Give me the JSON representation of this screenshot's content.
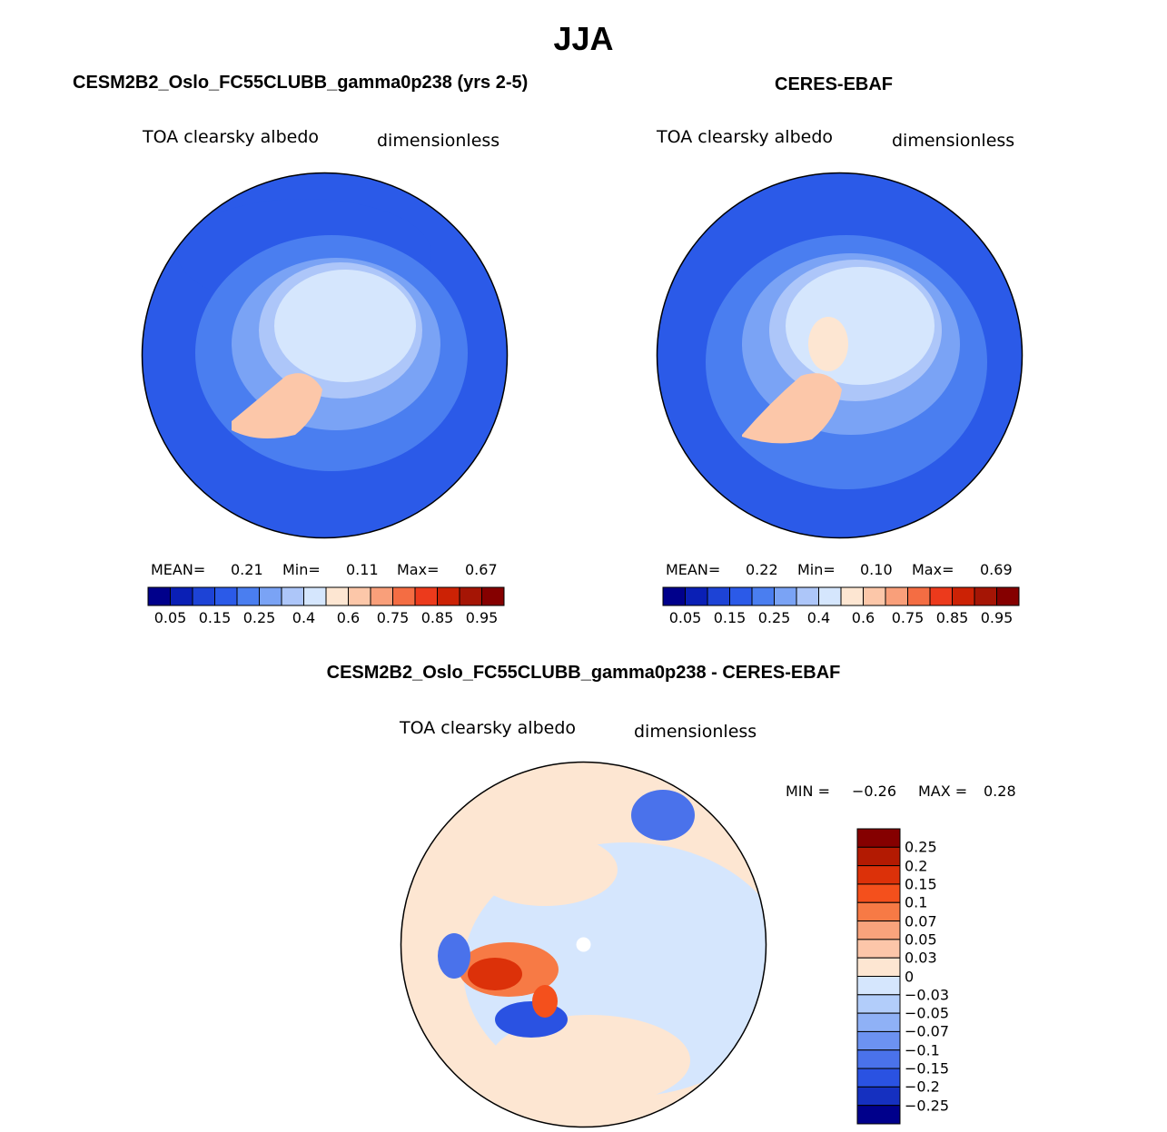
{
  "title": "JJA",
  "chart_data": [
    {
      "type": "heatmap",
      "projection": "north-polar-stereographic",
      "case_title": "CESM2B2_Oslo_FC55CLUBB_gamma0p238 (yrs 2-5)",
      "variable": "TOA clearsky albedo",
      "units": "dimensionless",
      "stats": {
        "mean_label": "MEAN=",
        "mean": "0.21",
        "min_label": "Min=",
        "min": "0.11",
        "max_label": "Max=",
        "max": "0.67"
      },
      "colorbar": {
        "colors": [
          "#00008b",
          "#0a1fb5",
          "#1d43d6",
          "#2b5ae8",
          "#4a7ef0",
          "#7aa3f5",
          "#adc6f9",
          "#d5e6fd",
          "#fde6d2",
          "#fcc7a9",
          "#f99f7a",
          "#f46d43",
          "#ec3a1c",
          "#cc2205",
          "#a51505",
          "#850000"
        ],
        "tick_labels": [
          "0.05",
          "0.15",
          "0.25",
          "0.4",
          "0.6",
          "0.75",
          "0.85",
          "0.95"
        ]
      }
    },
    {
      "type": "heatmap",
      "projection": "north-polar-stereographic",
      "case_title": "CERES-EBAF",
      "variable": "TOA clearsky albedo",
      "units": "dimensionless",
      "stats": {
        "mean_label": "MEAN=",
        "mean": "0.22",
        "min_label": "Min=",
        "min": "0.10",
        "max_label": "Max=",
        "max": "0.69"
      },
      "colorbar": {
        "colors": [
          "#00008b",
          "#0a1fb5",
          "#1d43d6",
          "#2b5ae8",
          "#4a7ef0",
          "#7aa3f5",
          "#adc6f9",
          "#d5e6fd",
          "#fde6d2",
          "#fcc7a9",
          "#f99f7a",
          "#f46d43",
          "#ec3a1c",
          "#cc2205",
          "#a51505",
          "#850000"
        ],
        "tick_labels": [
          "0.05",
          "0.15",
          "0.25",
          "0.4",
          "0.6",
          "0.75",
          "0.85",
          "0.95"
        ]
      }
    },
    {
      "type": "heatmap",
      "projection": "north-polar-stereographic",
      "case_title": "CESM2B2_Oslo_FC55CLUBB_gamma0p238 - CERES-EBAF",
      "variable": "TOA clearsky albedo",
      "units": "dimensionless",
      "stats": {
        "min_label": "MIN =",
        "min": "−0.26",
        "max_label": "MAX =",
        "max": "0.28"
      },
      "colorbar": {
        "colors": [
          "#850000",
          "#b31a02",
          "#dc3109",
          "#f4501c",
          "#f77a45",
          "#f9a37c",
          "#fcc6a9",
          "#fde6d2",
          "#d5e6fd",
          "#b2cdfa",
          "#8fb1f6",
          "#6c92f1",
          "#4a72eb",
          "#2a52e2",
          "#1530c0",
          "#00008b"
        ],
        "tick_labels": [
          "0.25",
          "0.2",
          "0.15",
          "0.1",
          "0.07",
          "0.05",
          "0.03",
          "0",
          "−0.03",
          "−0.05",
          "−0.07",
          "−0.1",
          "−0.15",
          "−0.2",
          "−0.25"
        ]
      }
    }
  ]
}
